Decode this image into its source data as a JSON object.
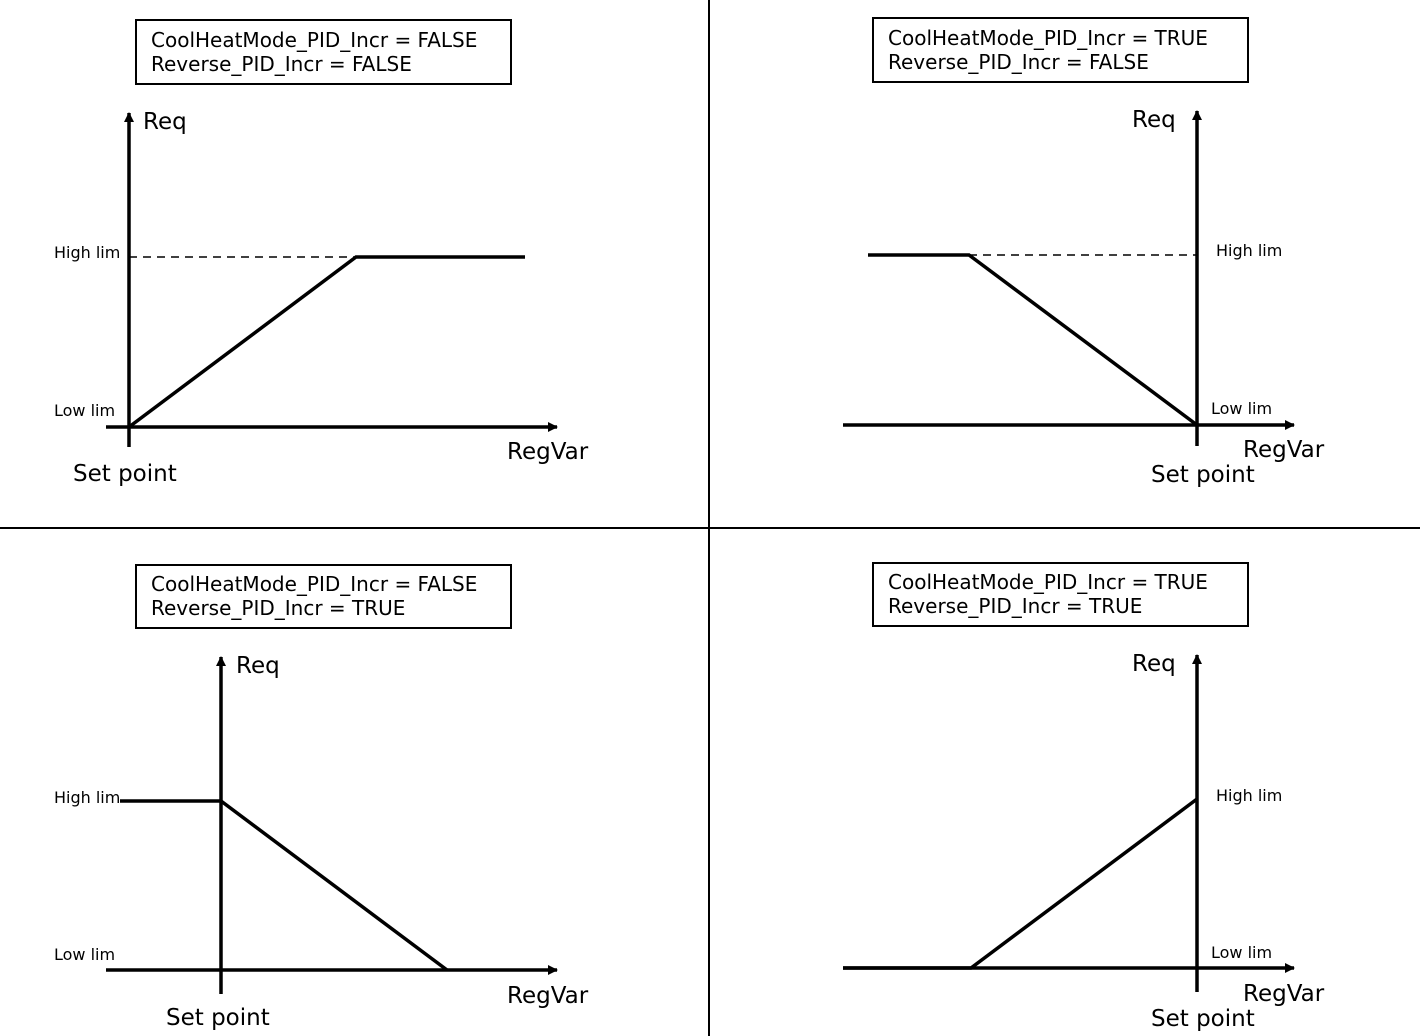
{
  "colors": {
    "background": "#ffffff",
    "ink": "#000000"
  },
  "labels": {
    "req": "Req",
    "regvar": "RegVar",
    "set_point": "Set point",
    "high_lim": "High lim",
    "low_lim": "Low lim"
  },
  "panels": [
    {
      "condition_line_1": "CoolHeatMode_PID_Incr = FALSE",
      "condition_line_2": "Reverse_PID_Incr = FALSE",
      "curve": "rises from Low lim at Set point to High lim as RegVar increases, then stays at High lim"
    },
    {
      "condition_line_1": "CoolHeatMode_PID_Incr = TRUE",
      "condition_line_2": "Reverse_PID_Incr = FALSE",
      "curve": "at High lim for low RegVar, falls to Low lim at Set point"
    },
    {
      "condition_line_1": "CoolHeatMode_PID_Incr = FALSE",
      "condition_line_2": "Reverse_PID_Incr = TRUE",
      "curve": "at High lim below Set point, falls to Low lim as RegVar increases"
    },
    {
      "condition_line_1": "CoolHeatMode_PID_Incr = TRUE",
      "condition_line_2": "Reverse_PID_Incr = TRUE",
      "curve": "at Low lim for low RegVar, rises to High lim at Set point"
    }
  ]
}
